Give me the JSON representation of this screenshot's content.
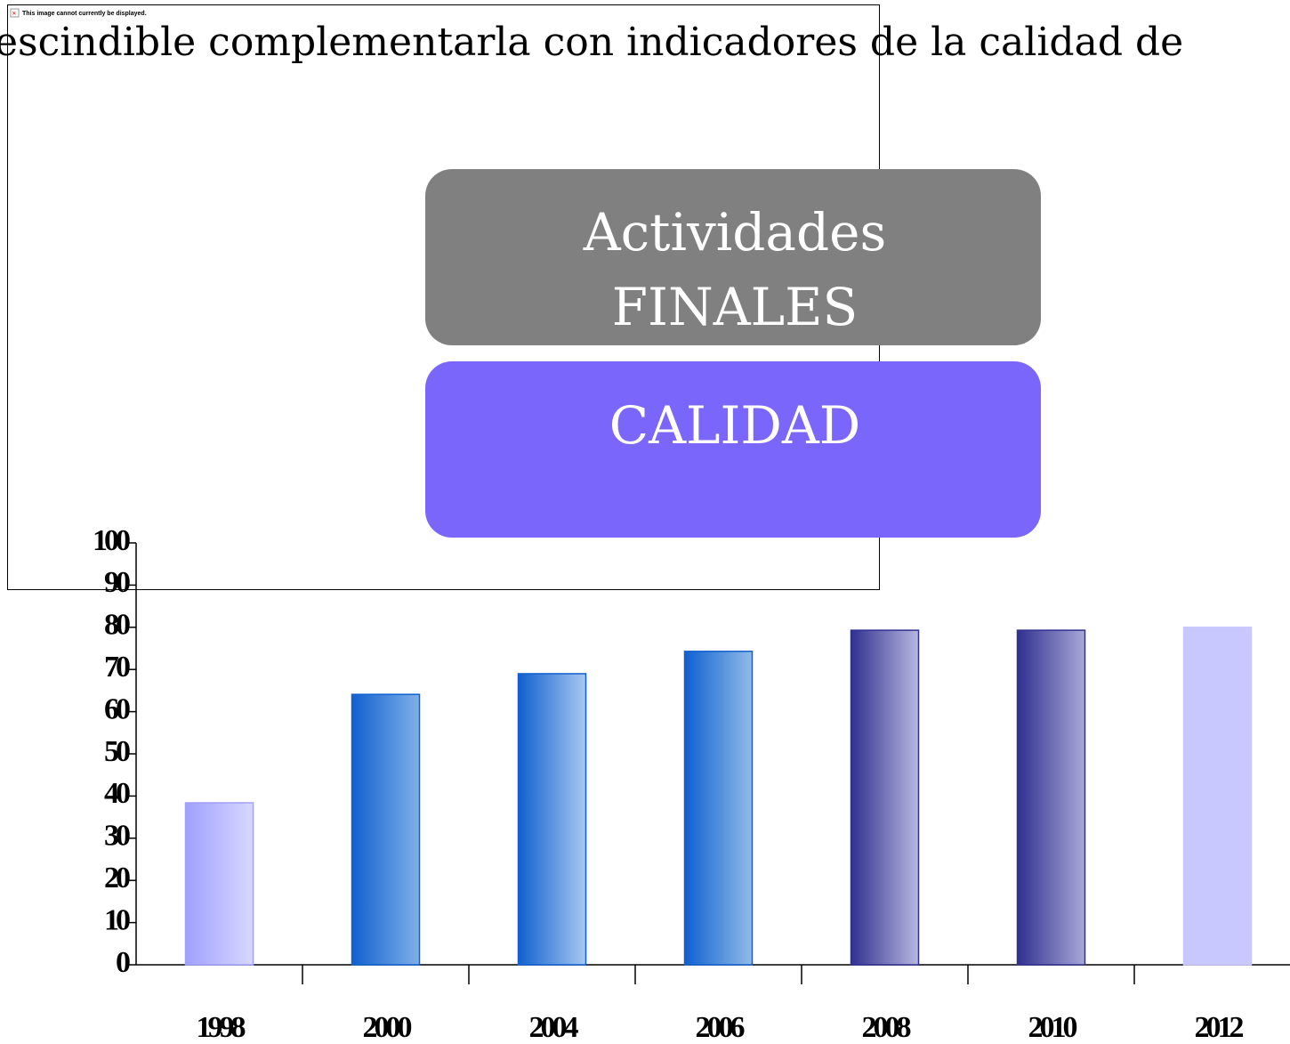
{
  "slide_text": "escindible complementarla con indicadores de la calidad de",
  "broken_image": {
    "message": "This image cannot currently be displayed."
  },
  "box_top": {
    "lines": [
      "Actividades",
      "FINALES"
    ]
  },
  "box_bottom": {
    "lines": [
      "CALIDAD"
    ]
  },
  "chart_data": {
    "type": "bar",
    "categories": [
      "1998",
      "2000",
      "2004",
      "2006",
      "2008",
      "2010",
      "2012"
    ],
    "values": [
      38.4,
      64.1,
      69,
      74.3,
      79.3,
      79.3,
      80
    ],
    "colors": [
      [
        "#a0a0ff",
        "#d8d8ff"
      ],
      [
        "#1060d0",
        "#80b0e8"
      ],
      [
        "#1060d0",
        "#a8c8f0"
      ],
      [
        "#1060d0",
        "#90bce8"
      ],
      [
        "#303090",
        "#b8b8e0"
      ],
      [
        "#303090",
        "#a8a8d8"
      ],
      [
        "#c8c8ff",
        "#c8c8ff"
      ]
    ],
    "ylim": [
      0,
      100
    ],
    "yticks": [
      0,
      10,
      20,
      30,
      40,
      50,
      60,
      70,
      80,
      90,
      100
    ]
  }
}
